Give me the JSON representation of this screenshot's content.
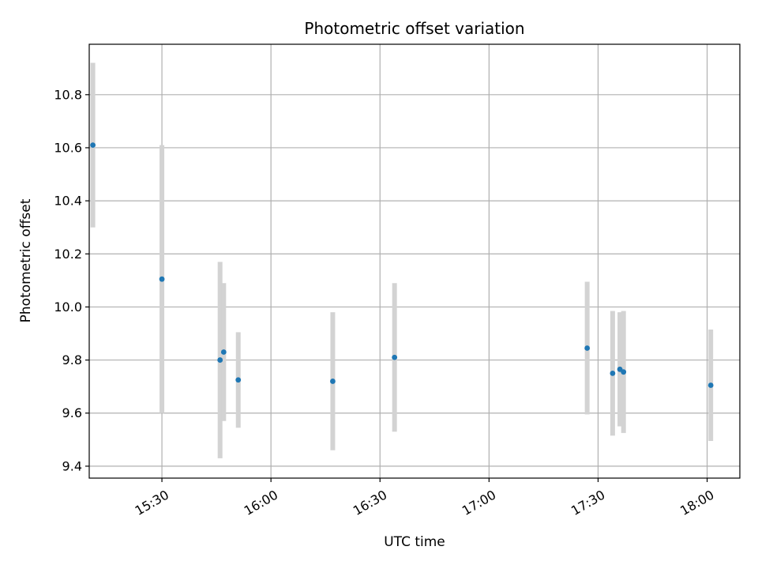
{
  "chart_data": {
    "type": "scatter",
    "title": "Photometric offset variation",
    "xlabel": "UTC time",
    "ylabel": "Photometric offset",
    "x_axis_kind": "time",
    "xlim": [
      "15:10",
      "18:09"
    ],
    "ylim": [
      9.355,
      10.99
    ],
    "xticks": [
      "15:30",
      "16:00",
      "16:30",
      "17:00",
      "17:30",
      "18:00"
    ],
    "yticks": [
      9.4,
      9.6,
      9.8,
      10.0,
      10.2,
      10.4,
      10.6,
      10.8
    ],
    "ytick_labels": [
      "9.4",
      "9.6",
      "9.8",
      "10.0",
      "10.2",
      "10.4",
      "10.6",
      "10.8"
    ],
    "grid": true,
    "marker_color": "#1f77b4",
    "errorbar_color": "#d3d3d3",
    "points": [
      {
        "t": "15:11",
        "y": 10.61,
        "err": 0.31
      },
      {
        "t": "15:30",
        "y": 10.105,
        "err": 0.505
      },
      {
        "t": "15:46",
        "y": 9.8,
        "err": 0.37
      },
      {
        "t": "15:47",
        "y": 9.83,
        "err": 0.26
      },
      {
        "t": "15:51",
        "y": 9.725,
        "err": 0.18
      },
      {
        "t": "16:17",
        "y": 9.72,
        "err": 0.26
      },
      {
        "t": "16:34",
        "y": 9.81,
        "err": 0.28
      },
      {
        "t": "17:27",
        "y": 9.845,
        "err": 0.25
      },
      {
        "t": "17:34",
        "y": 9.75,
        "err": 0.235
      },
      {
        "t": "17:36",
        "y": 9.765,
        "err": 0.215
      },
      {
        "t": "17:37",
        "y": 9.755,
        "err": 0.23
      },
      {
        "t": "18:01",
        "y": 9.705,
        "err": 0.21
      }
    ]
  }
}
